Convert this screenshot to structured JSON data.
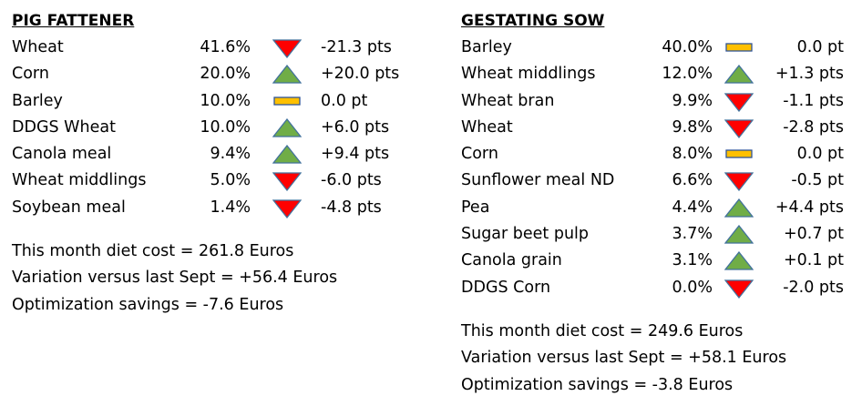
{
  "colors": {
    "up": "#70ad47",
    "up_border": "#41719c",
    "down": "#ff0000",
    "down_border": "#41719c",
    "flat": "#ffc000",
    "flat_border": "#2f5597"
  },
  "left": {
    "title": "PIG FATTENER",
    "rows": [
      {
        "name": "Wheat",
        "pct": "41.6%",
        "trend": "down",
        "change": "-21.3 pts"
      },
      {
        "name": "Corn",
        "pct": "20.0%",
        "trend": "up",
        "change": "+20.0 pts"
      },
      {
        "name": "Barley",
        "pct": "10.0%",
        "trend": "flat",
        "change": "0.0 pt"
      },
      {
        "name": "DDGS Wheat",
        "pct": "10.0%",
        "trend": "up",
        "change": "+6.0 pts"
      },
      {
        "name": "Canola meal",
        "pct": "9.4%",
        "trend": "up",
        "change": "+9.4 pts"
      },
      {
        "name": "Wheat middlings",
        "pct": "5.0%",
        "trend": "down",
        "change": "-6.0 pts"
      },
      {
        "name": "Soybean meal",
        "pct": "1.4%",
        "trend": "down",
        "change": "-4.8 pts"
      }
    ],
    "summary": [
      "This month diet cost = 261.8 Euros",
      "Variation versus last Sept = +56.4 Euros",
      "Optimization savings = -7.6 Euros"
    ]
  },
  "right": {
    "title": "GESTATING SOW",
    "rows": [
      {
        "name": "Barley",
        "pct": "40.0%",
        "trend": "flat",
        "change": "0.0 pt"
      },
      {
        "name": "Wheat middlings",
        "pct": "12.0%",
        "trend": "up",
        "change": "+1.3 pts"
      },
      {
        "name": "Wheat bran",
        "pct": "9.9%",
        "trend": "down",
        "change": "-1.1 pts"
      },
      {
        "name": "Wheat",
        "pct": "9.8%",
        "trend": "down",
        "change": "-2.8 pts"
      },
      {
        "name": "Corn",
        "pct": "8.0%",
        "trend": "flat",
        "change": "0.0 pt"
      },
      {
        "name": "Sunflower meal ND",
        "pct": "6.6%",
        "trend": "down",
        "change": "-0.5 pt"
      },
      {
        "name": "Pea",
        "pct": "4.4%",
        "trend": "up",
        "change": "+4.4 pts"
      },
      {
        "name": "Sugar beet pulp",
        "pct": "3.7%",
        "trend": "up",
        "change": "+0.7 pt"
      },
      {
        "name": "Canola grain",
        "pct": "3.1%",
        "trend": "up",
        "change": "+0.1 pt"
      },
      {
        "name": "DDGS Corn",
        "pct": "0.0%",
        "trend": "down",
        "change": "-2.0 pts"
      }
    ],
    "summary": [
      "This month diet cost = 249.6 Euros",
      "Variation versus last Sept = +58.1 Euros",
      "Optimization savings = -3.8 Euros"
    ]
  }
}
